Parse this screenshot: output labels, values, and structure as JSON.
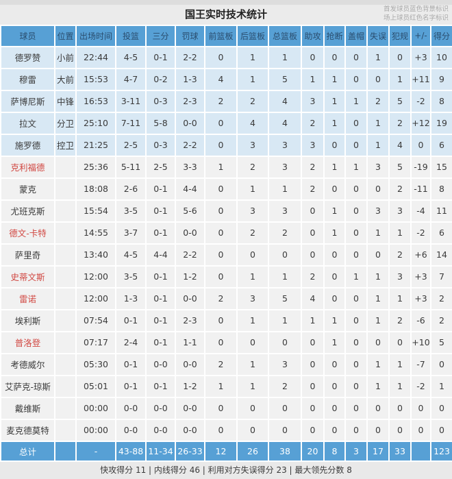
{
  "page": {
    "title": "国王实时技术统计",
    "legend_line1": "首发球员蓝色背景标识",
    "legend_line2": "场上球员红色名字标识",
    "footer": "快攻得分 11 | 内线得分 46 | 利用对方失误得分 23 | 最大领先分数 8"
  },
  "colors": {
    "header_bg": "#57a0d5",
    "header_text": "#2a4d6e",
    "starter_bg": "#d8e8f4",
    "bench_bg": "#f1f1f1",
    "total_bg": "#57a0d5",
    "red_name": "#d14842"
  },
  "table": {
    "headers": [
      "球员",
      "位置",
      "出场时间",
      "投篮",
      "三分",
      "罚球",
      "前篮板",
      "后篮板",
      "总篮板",
      "助攻",
      "抢断",
      "盖帽",
      "失误",
      "犯规",
      "+/-",
      "得分"
    ],
    "rows": [
      {
        "starter": true,
        "on_court": false,
        "cells": [
          "德罗赞",
          "小前",
          "22:44",
          "4-5",
          "0-1",
          "2-2",
          "0",
          "1",
          "1",
          "0",
          "0",
          "0",
          "1",
          "0",
          "+3",
          "10"
        ]
      },
      {
        "starter": true,
        "on_court": false,
        "cells": [
          "穆雷",
          "大前",
          "15:53",
          "4-7",
          "0-2",
          "1-3",
          "4",
          "1",
          "5",
          "1",
          "1",
          "0",
          "0",
          "1",
          "+11",
          "9"
        ]
      },
      {
        "starter": true,
        "on_court": false,
        "cells": [
          "萨博尼斯",
          "中锋",
          "16:53",
          "3-11",
          "0-3",
          "2-3",
          "2",
          "2",
          "4",
          "3",
          "1",
          "1",
          "2",
          "5",
          "-2",
          "8"
        ]
      },
      {
        "starter": true,
        "on_court": false,
        "cells": [
          "拉文",
          "分卫",
          "25:10",
          "7-11",
          "5-8",
          "0-0",
          "0",
          "4",
          "4",
          "2",
          "1",
          "0",
          "1",
          "2",
          "+12",
          "19"
        ]
      },
      {
        "starter": true,
        "on_court": false,
        "cells": [
          "施罗德",
          "控卫",
          "21:25",
          "2-5",
          "0-3",
          "2-2",
          "0",
          "3",
          "3",
          "3",
          "0",
          "0",
          "1",
          "4",
          "0",
          "6"
        ]
      },
      {
        "starter": false,
        "on_court": true,
        "cells": [
          "克利福德",
          "",
          "25:36",
          "5-11",
          "2-5",
          "3-3",
          "1",
          "2",
          "3",
          "2",
          "1",
          "1",
          "3",
          "5",
          "-19",
          "15"
        ]
      },
      {
        "starter": false,
        "on_court": false,
        "cells": [
          "蒙克",
          "",
          "18:08",
          "2-6",
          "0-1",
          "4-4",
          "0",
          "1",
          "1",
          "2",
          "0",
          "0",
          "0",
          "2",
          "-11",
          "8"
        ]
      },
      {
        "starter": false,
        "on_court": false,
        "cells": [
          "尤班克斯",
          "",
          "15:54",
          "3-5",
          "0-1",
          "5-6",
          "0",
          "3",
          "3",
          "0",
          "1",
          "0",
          "3",
          "3",
          "-4",
          "11"
        ]
      },
      {
        "starter": false,
        "on_court": true,
        "cells": [
          "德文-卡特",
          "",
          "14:55",
          "3-7",
          "0-1",
          "0-0",
          "0",
          "2",
          "2",
          "0",
          "1",
          "0",
          "1",
          "1",
          "-2",
          "6"
        ]
      },
      {
        "starter": false,
        "on_court": false,
        "cells": [
          "萨里奇",
          "",
          "13:40",
          "4-5",
          "4-4",
          "2-2",
          "0",
          "0",
          "0",
          "0",
          "0",
          "0",
          "0",
          "2",
          "+6",
          "14"
        ]
      },
      {
        "starter": false,
        "on_court": true,
        "cells": [
          "史蒂文斯",
          "",
          "12:00",
          "3-5",
          "0-1",
          "1-2",
          "0",
          "1",
          "1",
          "2",
          "0",
          "1",
          "1",
          "3",
          "+3",
          "7"
        ]
      },
      {
        "starter": false,
        "on_court": true,
        "cells": [
          "雷诺",
          "",
          "12:00",
          "1-3",
          "0-1",
          "0-0",
          "2",
          "3",
          "5",
          "4",
          "0",
          "0",
          "1",
          "1",
          "+3",
          "2"
        ]
      },
      {
        "starter": false,
        "on_court": false,
        "cells": [
          "埃利斯",
          "",
          "07:54",
          "0-1",
          "0-1",
          "2-3",
          "0",
          "1",
          "1",
          "1",
          "1",
          "0",
          "1",
          "2",
          "-6",
          "2"
        ]
      },
      {
        "starter": false,
        "on_court": true,
        "cells": [
          "普洛登",
          "",
          "07:17",
          "2-4",
          "0-1",
          "1-1",
          "0",
          "0",
          "0",
          "0",
          "1",
          "0",
          "0",
          "0",
          "+10",
          "5"
        ]
      },
      {
        "starter": false,
        "on_court": false,
        "cells": [
          "考德威尔",
          "",
          "05:30",
          "0-1",
          "0-0",
          "0-0",
          "2",
          "1",
          "3",
          "0",
          "0",
          "0",
          "1",
          "1",
          "-7",
          "0"
        ]
      },
      {
        "starter": false,
        "on_court": false,
        "cells": [
          "艾萨克-琼斯",
          "",
          "05:01",
          "0-1",
          "0-1",
          "1-2",
          "1",
          "1",
          "2",
          "0",
          "0",
          "0",
          "1",
          "1",
          "-2",
          "1"
        ]
      },
      {
        "starter": false,
        "on_court": false,
        "cells": [
          "戴维斯",
          "",
          "00:00",
          "0-0",
          "0-0",
          "0-0",
          "0",
          "0",
          "0",
          "0",
          "0",
          "0",
          "0",
          "0",
          "0",
          "0"
        ]
      },
      {
        "starter": false,
        "on_court": false,
        "cells": [
          "麦克德莫特",
          "",
          "00:00",
          "0-0",
          "0-0",
          "0-0",
          "0",
          "0",
          "0",
          "0",
          "0",
          "0",
          "0",
          "0",
          "0",
          "0"
        ]
      }
    ],
    "total": {
      "cells": [
        "总计",
        "",
        "-",
        "43-88",
        "11-34",
        "26-33",
        "12",
        "26",
        "38",
        "20",
        "8",
        "3",
        "17",
        "33",
        "",
        "123"
      ]
    }
  }
}
